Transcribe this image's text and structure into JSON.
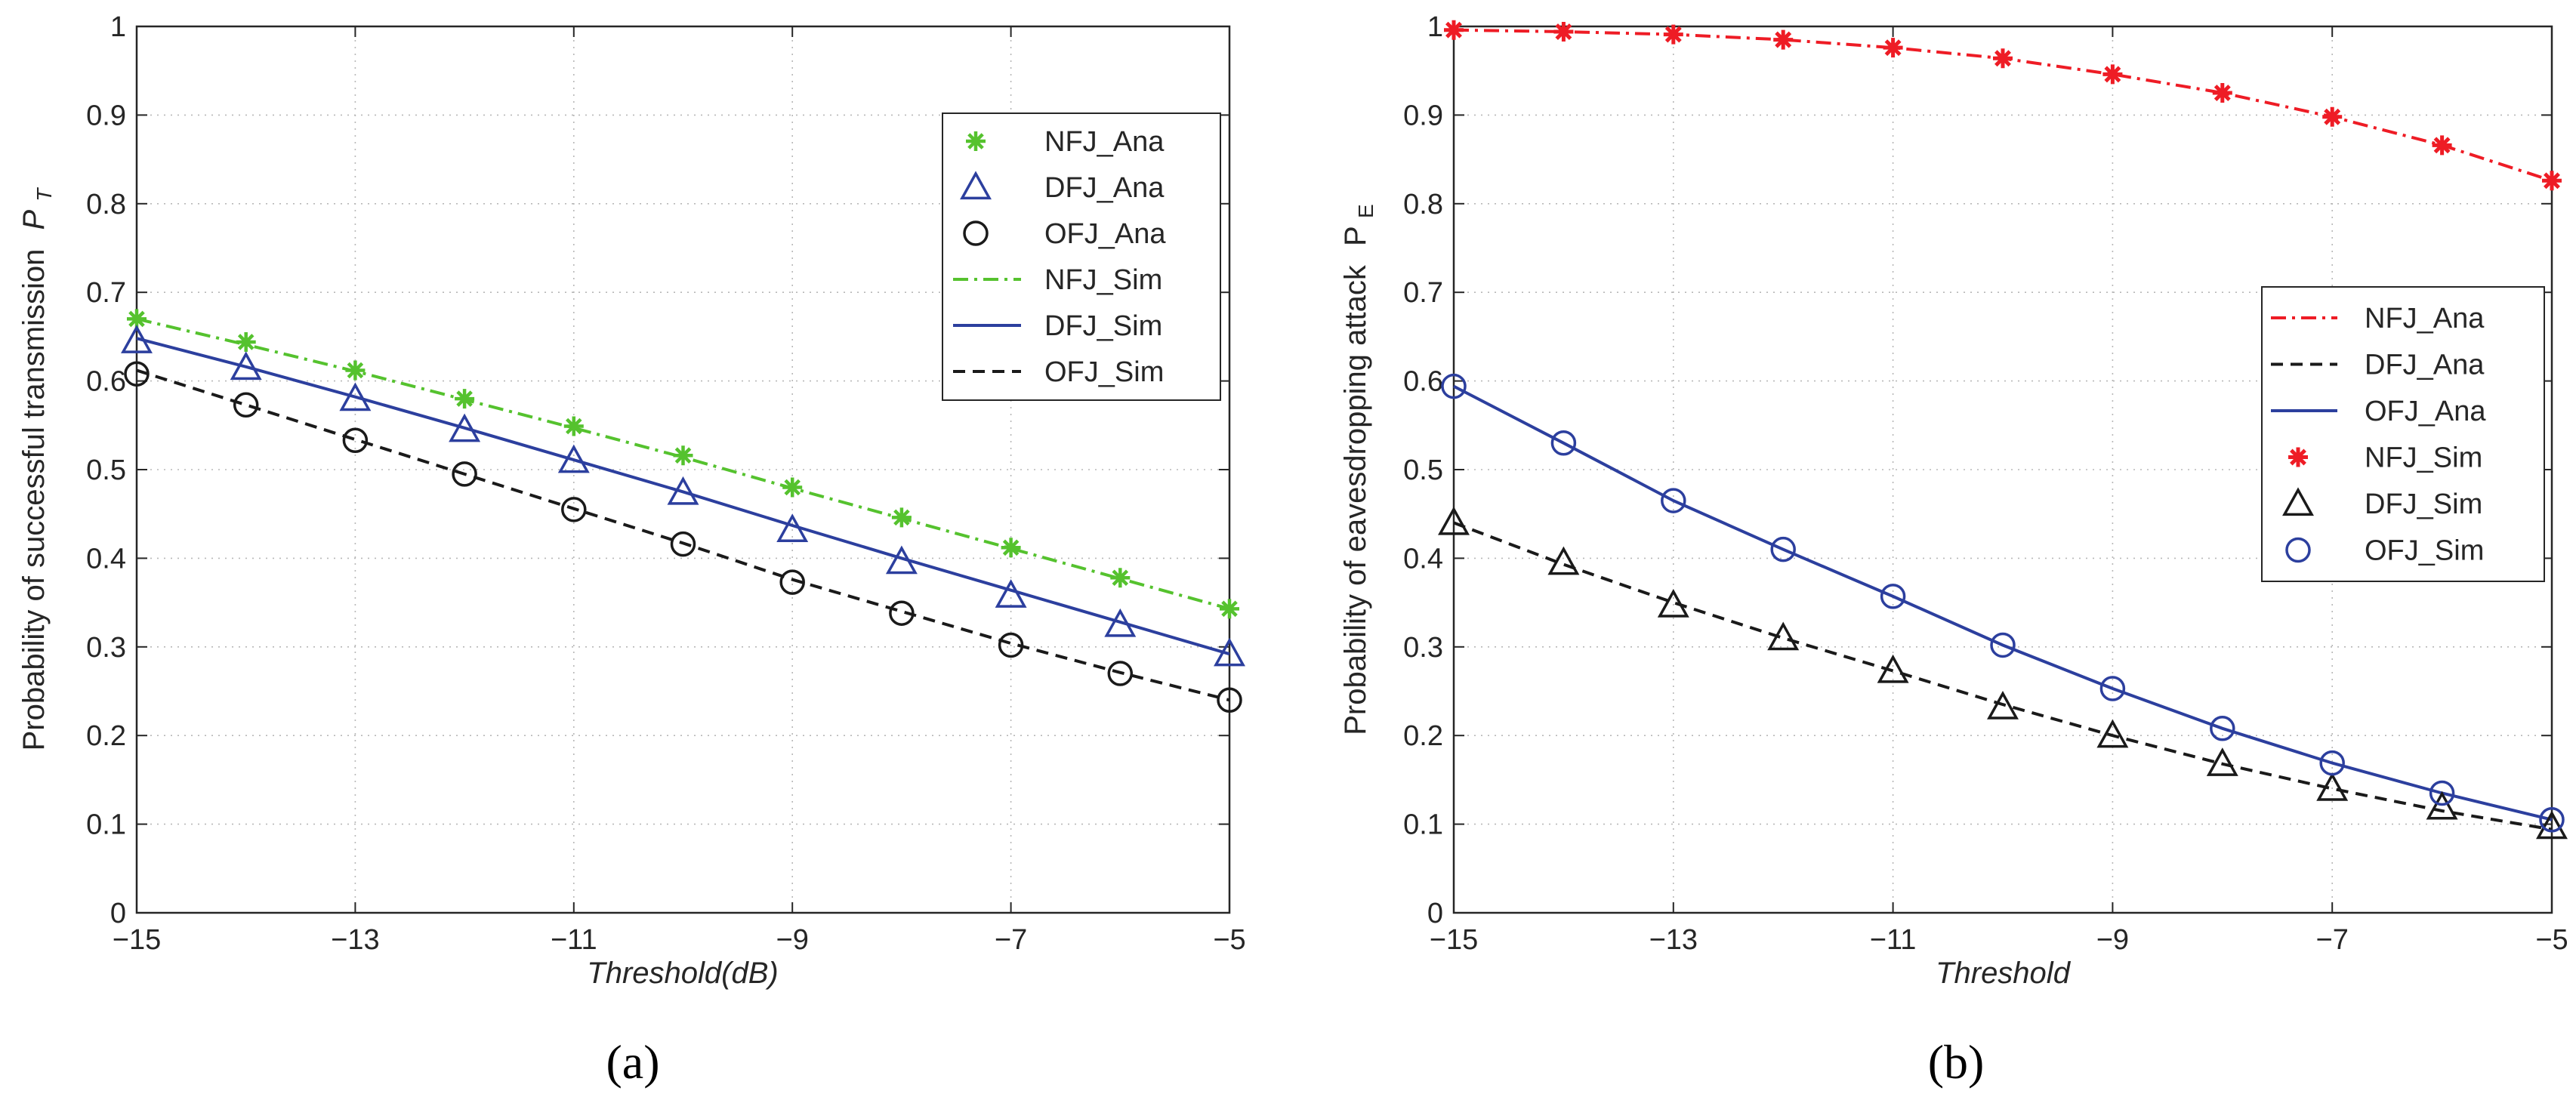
{
  "colors": {
    "green": "#55c22e",
    "blue": "#2c3f9e",
    "black": "#1a1a1a",
    "red": "#ee1c25"
  },
  "chart_data": [
    {
      "type": "line",
      "panel_label": "(a)",
      "xlabel": "Threshold(dB)",
      "ylabel": "Probability of successful transmission",
      "ylabel_symbol": "P",
      "ylabel_sub": "T",
      "xlim": [
        -15,
        -5
      ],
      "ylim": [
        0,
        1
      ],
      "xticks": [
        -15,
        -13,
        -11,
        -9,
        -7,
        -5
      ],
      "xtick_labels": [
        "−15",
        "−13",
        "−11",
        "−9",
        "−7",
        "−5"
      ],
      "yticks": [
        0,
        0.1,
        0.2,
        0.3,
        0.4,
        0.5,
        0.6,
        0.7,
        0.8,
        0.9,
        1
      ],
      "ytick_labels": [
        "0",
        "0.1",
        "0.2",
        "0.3",
        "0.4",
        "0.5",
        "0.6",
        "0.7",
        "0.8",
        "0.9",
        "1"
      ],
      "grid": true,
      "legend_position": "upper-right",
      "x": [
        -15,
        -14,
        -13,
        -12,
        -11,
        -10,
        -9,
        -8,
        -7,
        -6,
        -5
      ],
      "series": [
        {
          "name": "NFJ_Ana",
          "kind": "marker",
          "marker": "star",
          "color": "#55c22e",
          "values": [
            0.67,
            0.644,
            0.612,
            0.58,
            0.549,
            0.516,
            0.48,
            0.446,
            0.412,
            0.378,
            0.343
          ]
        },
        {
          "name": "DFJ_Ana",
          "kind": "marker",
          "marker": "triangle",
          "color": "#2c3f9e",
          "values": [
            0.645,
            0.615,
            0.58,
            0.545,
            0.51,
            0.474,
            0.432,
            0.396,
            0.358,
            0.325,
            0.292
          ]
        },
        {
          "name": "OFJ_Ana",
          "kind": "marker",
          "marker": "circle",
          "color": "#1a1a1a",
          "values": [
            0.608,
            0.573,
            0.533,
            0.495,
            0.455,
            0.416,
            0.373,
            0.338,
            0.302,
            0.27,
            0.24
          ]
        },
        {
          "name": "NFJ_Sim",
          "kind": "line",
          "dash": "dashdot",
          "color": "#55c22e",
          "values": [
            0.67,
            0.641,
            0.611,
            0.579,
            0.547,
            0.514,
            0.479,
            0.445,
            0.411,
            0.377,
            0.343
          ]
        },
        {
          "name": "DFJ_Sim",
          "kind": "line",
          "dash": "solid",
          "color": "#2c3f9e",
          "values": [
            0.648,
            0.616,
            0.582,
            0.547,
            0.511,
            0.475,
            0.437,
            0.4,
            0.364,
            0.328,
            0.292
          ]
        },
        {
          "name": "OFJ_Sim",
          "kind": "line",
          "dash": "dashed",
          "color": "#1a1a1a",
          "values": [
            0.612,
            0.573,
            0.534,
            0.495,
            0.456,
            0.417,
            0.376,
            0.34,
            0.304,
            0.271,
            0.24
          ]
        }
      ]
    },
    {
      "type": "line",
      "panel_label": "(b)",
      "xlabel": "Threshold",
      "ylabel": "Probability of eavesdropping attack",
      "ylabel_symbol": "P",
      "ylabel_sub": "E",
      "xlim": [
        -15,
        -5
      ],
      "ylim": [
        0,
        1
      ],
      "xticks": [
        -15,
        -13,
        -11,
        -9,
        -7,
        -5
      ],
      "xtick_labels": [
        "−15",
        "−13",
        "−11",
        "−9",
        "−7",
        "−5"
      ],
      "yticks": [
        0,
        0.1,
        0.2,
        0.3,
        0.4,
        0.5,
        0.6,
        0.7,
        0.8,
        0.9,
        1
      ],
      "ytick_labels": [
        "0",
        "0.1",
        "0.2",
        "0.3",
        "0.4",
        "0.5",
        "0.6",
        "0.7",
        "0.8",
        "0.9",
        "1"
      ],
      "grid": true,
      "legend_position": "right",
      "x": [
        -15,
        -14,
        -13,
        -12,
        -11,
        -10,
        -9,
        -8,
        -7,
        -6,
        -5
      ],
      "series": [
        {
          "name": "NFJ_Ana",
          "kind": "line",
          "dash": "dashdot",
          "color": "#ee1c25",
          "values": [
            0.996,
            0.994,
            0.991,
            0.985,
            0.976,
            0.964,
            0.946,
            0.925,
            0.898,
            0.866,
            0.826
          ]
        },
        {
          "name": "DFJ_Ana",
          "kind": "line",
          "dash": "dashed",
          "color": "#1a1a1a",
          "values": [
            0.44,
            0.393,
            0.35,
            0.31,
            0.273,
            0.235,
            0.2,
            0.168,
            0.14,
            0.115,
            0.094
          ]
        },
        {
          "name": "OFJ_Ana",
          "kind": "line",
          "dash": "solid",
          "color": "#2c3f9e",
          "values": [
            0.594,
            0.53,
            0.465,
            0.41,
            0.357,
            0.302,
            0.253,
            0.208,
            0.169,
            0.135,
            0.105
          ]
        },
        {
          "name": "NFJ_Sim",
          "kind": "marker",
          "marker": "asterisk",
          "color": "#ee1c25",
          "values": [
            0.996,
            0.994,
            0.991,
            0.985,
            0.976,
            0.964,
            0.946,
            0.925,
            0.898,
            0.866,
            0.826
          ]
        },
        {
          "name": "DFJ_Sim",
          "kind": "marker",
          "marker": "triangle",
          "color": "#1a1a1a",
          "values": [
            0.44,
            0.395,
            0.347,
            0.31,
            0.273,
            0.232,
            0.2,
            0.168,
            0.14,
            0.119,
            0.097
          ]
        },
        {
          "name": "OFJ_Sim",
          "kind": "marker",
          "marker": "circle",
          "color": "#2c3f9e",
          "values": [
            0.594,
            0.53,
            0.465,
            0.41,
            0.357,
            0.302,
            0.253,
            0.208,
            0.169,
            0.135,
            0.105
          ]
        }
      ]
    }
  ]
}
